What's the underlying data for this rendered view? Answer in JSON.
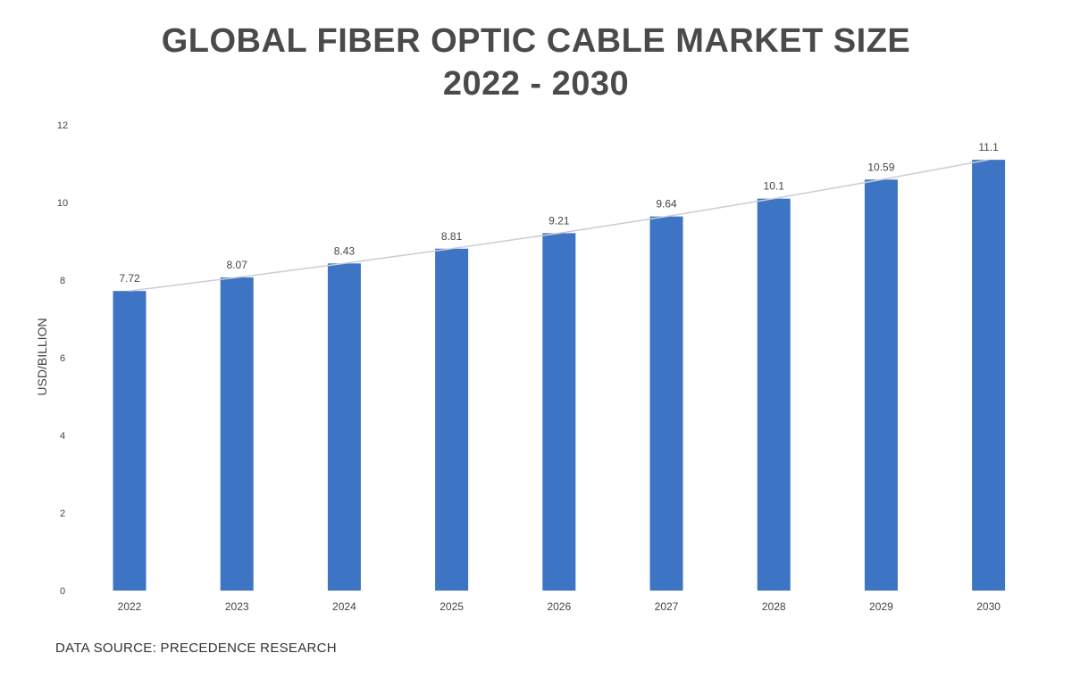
{
  "title_line1": "GLOBAL FIBER OPTIC CABLE MARKET SIZE",
  "title_line2": "2022 - 2030",
  "source": "DATA SOURCE: PRECEDENCE RESEARCH",
  "colors": {
    "bar": "#3d74c3",
    "trend": "#c8cdd6",
    "text": "#444444",
    "title": "#4a4a4a"
  },
  "chart_data": {
    "type": "bar",
    "title": "GLOBAL FIBER OPTIC CABLE MARKET SIZE 2022 - 2030",
    "xlabel": "",
    "ylabel": "USD/BILLION",
    "categories": [
      "2022",
      "2023",
      "2024",
      "2025",
      "2026",
      "2027",
      "2028",
      "2029",
      "2030"
    ],
    "values": [
      7.72,
      8.07,
      8.43,
      8.81,
      9.21,
      9.64,
      10.1,
      10.59,
      11.1
    ],
    "data_labels": [
      "7.72",
      "8.07",
      "8.43",
      "8.81",
      "9.21",
      "9.64",
      "10.1",
      "10.59",
      "11.1"
    ],
    "ylim": [
      0,
      12
    ],
    "yticks": [
      0,
      2,
      4,
      6,
      8,
      10,
      12
    ],
    "trendline": true,
    "grid": false,
    "legend": "none"
  }
}
